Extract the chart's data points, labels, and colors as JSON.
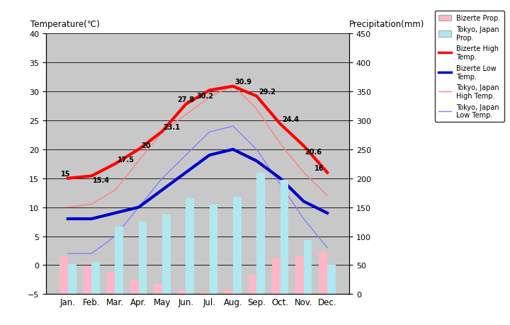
{
  "months": [
    "Jan.",
    "Feb.",
    "Mar.",
    "Apr.",
    "May",
    "Jun.",
    "Jul.",
    "Aug.",
    "Sep.",
    "Oct.",
    "Nov.",
    "Dec."
  ],
  "bizerte_high": [
    15,
    15.4,
    17.5,
    20,
    23.1,
    27.8,
    30.2,
    30.9,
    29.2,
    24.4,
    20.6,
    16
  ],
  "bizerte_low": [
    8,
    8,
    9,
    10,
    13,
    16,
    19,
    20,
    18,
    15,
    11,
    9
  ],
  "tokyo_high": [
    10,
    10.5,
    13,
    18,
    23,
    26,
    29,
    31,
    27,
    21,
    16,
    12
  ],
  "tokyo_low": [
    2,
    2,
    5,
    10,
    15,
    19,
    23,
    24,
    20,
    14,
    8,
    3
  ],
  "bizerte_precip": [
    67,
    48,
    38,
    25,
    18,
    8,
    3,
    8,
    33,
    63,
    67,
    72
  ],
  "tokyo_precip": [
    52,
    56,
    117,
    125,
    137,
    165,
    154,
    168,
    210,
    197,
    93,
    51
  ],
  "bizerte_high_labels": [
    "15",
    "15.4",
    "17.5",
    "20",
    "23.1",
    "27.8",
    "30.2",
    "30.9",
    "29.2",
    "24.4",
    "20.6",
    "16"
  ],
  "title_left": "Temperature(℃)",
  "title_right": "Precipitation(mm)",
  "temp_ylim": [
    -5,
    40
  ],
  "precip_ylim": [
    0,
    450
  ],
  "temp_yticks": [
    -5,
    0,
    5,
    10,
    15,
    20,
    25,
    30,
    35,
    40
  ],
  "precip_yticks": [
    0,
    50,
    100,
    150,
    200,
    250,
    300,
    350,
    400,
    450
  ],
  "bg_color": "#ffffff",
  "plot_bg_color": "#c8c8c8",
  "bizerte_high_color": "#ff0000",
  "bizerte_low_color": "#0000cc",
  "tokyo_high_color": "#ff8080",
  "tokyo_low_color": "#8080ff",
  "bizerte_precip_color": "#ffb6c8",
  "tokyo_precip_color": "#b0e8f0",
  "grid_color": "#000000",
  "bar_width": 0.35,
  "label_offsets_x": [
    -0.3,
    0.05,
    0.1,
    0.1,
    0.05,
    -0.35,
    -0.55,
    0.08,
    0.08,
    0.08,
    0.05,
    -0.55
  ],
  "label_offsets_y": [
    0.4,
    -1.0,
    0.4,
    0.4,
    0.4,
    0.5,
    -1.3,
    0.4,
    0.5,
    0.5,
    -1.3,
    0.4
  ]
}
